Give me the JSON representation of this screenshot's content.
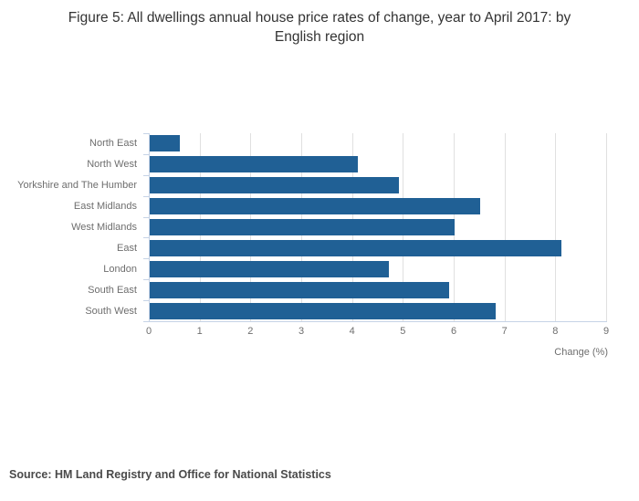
{
  "title": "Figure 5: All dwellings annual house price rates of change, year to April 2017: by English region",
  "source": "Source: HM Land Registry and Office for National Statistics",
  "colors": {
    "bar": "#206095",
    "gridline": "#e0e0e0",
    "axis": "#c6d3e6",
    "tick_label": "#6e6e6e",
    "title": "#333333",
    "source": "#4a4a4a"
  },
  "chart_data": {
    "type": "bar",
    "orientation": "horizontal",
    "title": "Figure 5: All dwellings annual house price rates of change, year to April 2017: by English region",
    "categories": [
      "North East",
      "North West",
      "Yorkshire and The Humber",
      "East Midlands",
      "West Midlands",
      "East",
      "London",
      "South East",
      "South West"
    ],
    "values": [
      0.6,
      4.1,
      4.9,
      6.5,
      6.0,
      8.1,
      4.7,
      5.9,
      6.8
    ],
    "xlabel": "Change (%)",
    "ylabel": "",
    "xlim": [
      0,
      9
    ],
    "xticks": [
      0,
      1,
      2,
      3,
      4,
      5,
      6,
      7,
      8,
      9
    ],
    "grid": true,
    "legend": false,
    "bar_color": "#206095"
  }
}
